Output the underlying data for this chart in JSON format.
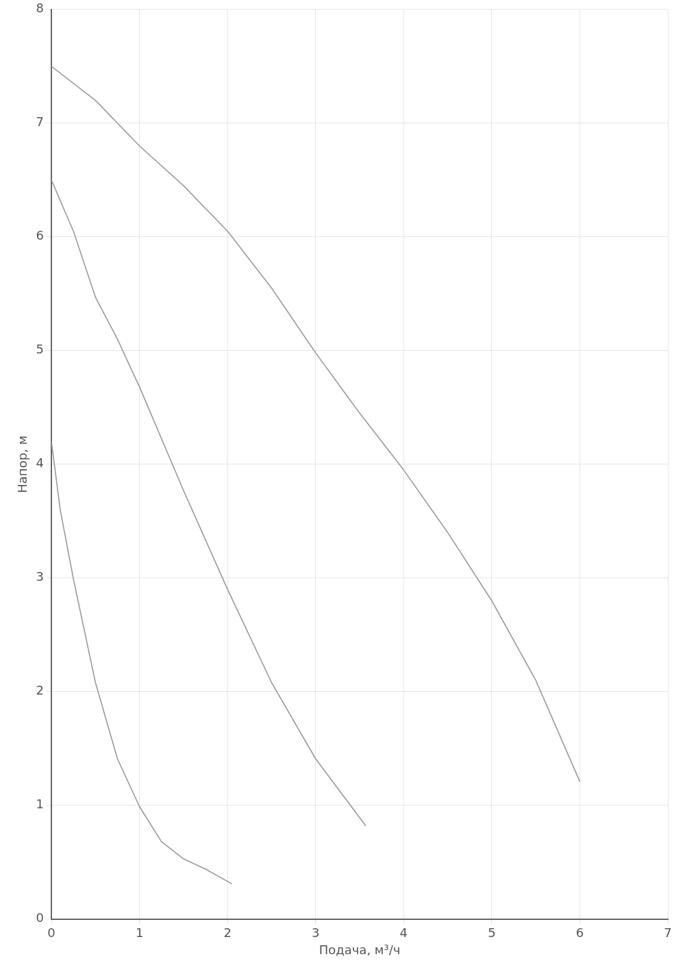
{
  "chart_data": {
    "type": "line",
    "xlabel": "Подача, м³/ч",
    "ylabel": "Напор, м",
    "xlim": [
      0,
      7
    ],
    "ylim": [
      0,
      8
    ],
    "xticks": [
      0,
      1,
      2,
      3,
      4,
      5,
      6,
      7
    ],
    "yticks": [
      0,
      1,
      2,
      3,
      4,
      5,
      6,
      7,
      8
    ],
    "grid": true,
    "legend": false,
    "marker": "none",
    "line_style": "solid",
    "series": [
      {
        "color": "#999999",
        "x": [
          0,
          0.5,
          1,
          1.5,
          2,
          2.5,
          3,
          3.5,
          4,
          4.5,
          5,
          5.5,
          6
        ],
        "values": [
          7.5,
          7.2,
          6.8,
          6.45,
          6.05,
          5.55,
          4.98,
          4.45,
          3.95,
          3.4,
          2.8,
          2.1,
          1.21
        ]
      },
      {
        "color": "#999999",
        "x": [
          0,
          0.25,
          0.5,
          0.75,
          1,
          1.5,
          2,
          2.5,
          3,
          3.57
        ],
        "values": [
          6.5,
          6.05,
          5.47,
          5.1,
          4.68,
          3.77,
          2.9,
          2.08,
          1.41,
          0.82
        ]
      },
      {
        "color": "#999999",
        "x": [
          0,
          0.1,
          0.25,
          0.5,
          0.75,
          1,
          1.25,
          1.5,
          1.75,
          2.05
        ],
        "values": [
          4.2,
          3.6,
          2.99,
          2.08,
          1.41,
          0.99,
          0.68,
          0.53,
          0.44,
          0.31
        ]
      }
    ]
  }
}
